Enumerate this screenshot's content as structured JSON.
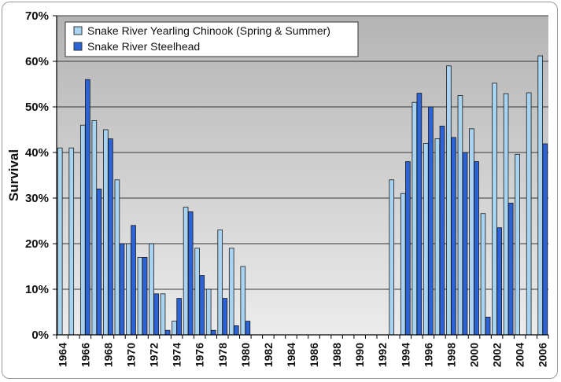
{
  "chart_data": {
    "type": "bar",
    "title": "",
    "xlabel": "",
    "ylabel": "Survival",
    "ylim": [
      0,
      70
    ],
    "y_ticks": [
      "0%",
      "10%",
      "20%",
      "30%",
      "40%",
      "50%",
      "60%",
      "70%"
    ],
    "x_tick_labels": [
      "1964",
      "1966",
      "1968",
      "1970",
      "1972",
      "1974",
      "1976",
      "1978",
      "1980",
      "1982",
      "1984",
      "1986",
      "1988",
      "1990",
      "1992",
      "1994",
      "1996",
      "1998",
      "2000",
      "2002",
      "2004",
      "2006"
    ],
    "categories": [
      1964,
      1965,
      1966,
      1967,
      1968,
      1969,
      1970,
      1971,
      1972,
      1973,
      1974,
      1975,
      1976,
      1977,
      1978,
      1979,
      1980,
      1981,
      1982,
      1983,
      1984,
      1985,
      1986,
      1987,
      1988,
      1989,
      1990,
      1991,
      1992,
      1993,
      1994,
      1995,
      1996,
      1997,
      1998,
      1999,
      2000,
      2001,
      2002,
      2003,
      2004,
      2005,
      2006
    ],
    "legend_position": "top-left",
    "grid": true,
    "series": [
      {
        "name": "Snake River Yearling Chinook (Spring & Summer)",
        "color": "#a8d4f2",
        "values": [
          41,
          41,
          46,
          47,
          45,
          34,
          20,
          17,
          20,
          9,
          3,
          28,
          19,
          10,
          23,
          19,
          15,
          null,
          null,
          null,
          null,
          null,
          null,
          null,
          null,
          null,
          null,
          null,
          null,
          34,
          31,
          51,
          42,
          43,
          59,
          52.5,
          45.2,
          26.6,
          55.2,
          52.9,
          39.6,
          53.1,
          61.2
        ]
      },
      {
        "name": "Snake River Steelhead",
        "color": "#2c63d6",
        "values": [
          null,
          null,
          56,
          32,
          43,
          20,
          24,
          17,
          9,
          1,
          8,
          27,
          13,
          1,
          8,
          2,
          3,
          null,
          null,
          null,
          null,
          null,
          null,
          null,
          null,
          null,
          null,
          null,
          null,
          null,
          38,
          53,
          50,
          45.8,
          43.3,
          40,
          38,
          3.9,
          23.5,
          28.9,
          null,
          null,
          41.9
        ]
      }
    ]
  }
}
